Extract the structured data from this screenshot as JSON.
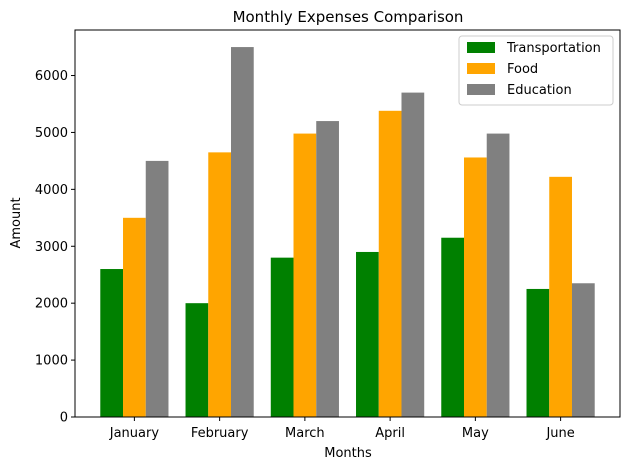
{
  "chart_data": {
    "type": "bar",
    "title": "Monthly Expenses Comparison",
    "xlabel": "Months",
    "ylabel": "Amount",
    "categories": [
      "January",
      "February",
      "March",
      "April",
      "May",
      "June"
    ],
    "ylim": [
      0,
      6800
    ],
    "yticks": [
      0,
      1000,
      2000,
      3000,
      4000,
      5000,
      6000
    ],
    "grid": false,
    "legend_position": "top-right",
    "series": [
      {
        "name": "Transportation",
        "color": "#008000",
        "values": [
          2600,
          2000,
          2800,
          2900,
          3150,
          2250
        ]
      },
      {
        "name": "Food",
        "color": "#ffa500",
        "values": [
          3500,
          4650,
          4980,
          5380,
          4560,
          4220
        ]
      },
      {
        "name": "Education",
        "color": "#808080",
        "values": [
          4500,
          6500,
          5200,
          5700,
          4980,
          2350
        ]
      }
    ]
  }
}
